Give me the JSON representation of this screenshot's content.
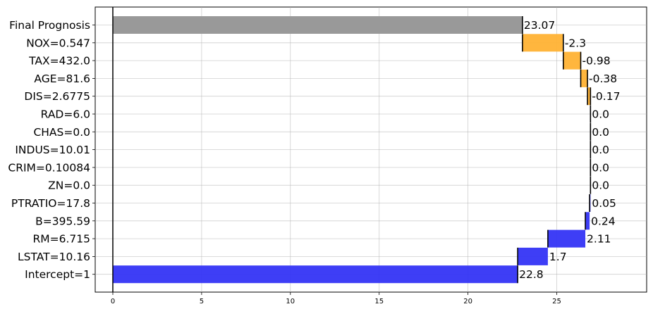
{
  "chart_data": {
    "type": "bar",
    "orientation": "horizontal",
    "style": "waterfall",
    "title": "",
    "xlabel": "",
    "ylabel": "",
    "xlim": [
      0,
      30
    ],
    "xticks": [
      0,
      5,
      10,
      15,
      20,
      25
    ],
    "grid": true,
    "colors": {
      "final": "#999999",
      "negative": "#ffb234",
      "positive": "#3434f5",
      "connector": "#000000"
    },
    "rows": [
      {
        "label": "Final Prognosis",
        "start": 0,
        "end": 23.07,
        "value_label": "23.07",
        "kind": "final"
      },
      {
        "label": "NOX=0.547",
        "start": 23.07,
        "end": 25.37,
        "value_label": "-2.3",
        "kind": "negative"
      },
      {
        "label": "TAX=432.0",
        "start": 25.37,
        "end": 26.35,
        "value_label": "-0.98",
        "kind": "negative"
      },
      {
        "label": "AGE=81.6",
        "start": 26.35,
        "end": 26.73,
        "value_label": "-0.38",
        "kind": "negative"
      },
      {
        "label": "DIS=2.6775",
        "start": 26.73,
        "end": 26.9,
        "value_label": "-0.17",
        "kind": "negative"
      },
      {
        "label": "RAD=6.0",
        "start": 26.9,
        "end": 26.9,
        "value_label": "0.0",
        "kind": "zero"
      },
      {
        "label": "CHAS=0.0",
        "start": 26.9,
        "end": 26.9,
        "value_label": "0.0",
        "kind": "zero"
      },
      {
        "label": "INDUS=10.01",
        "start": 26.9,
        "end": 26.9,
        "value_label": "0.0",
        "kind": "zero"
      },
      {
        "label": "CRIM=0.10084",
        "start": 26.9,
        "end": 26.9,
        "value_label": "0.0",
        "kind": "zero"
      },
      {
        "label": "ZN=0.0",
        "start": 26.9,
        "end": 26.9,
        "value_label": "0.0",
        "kind": "zero"
      },
      {
        "label": "PTRATIO=17.8",
        "start": 26.85,
        "end": 26.9,
        "value_label": "0.05",
        "kind": "positive"
      },
      {
        "label": "B=395.59",
        "start": 26.61,
        "end": 26.85,
        "value_label": "0.24",
        "kind": "positive"
      },
      {
        "label": "RM=6.715",
        "start": 24.5,
        "end": 26.61,
        "value_label": "2.11",
        "kind": "positive"
      },
      {
        "label": "LSTAT=10.16",
        "start": 22.8,
        "end": 24.5,
        "value_label": "1.7",
        "kind": "positive"
      },
      {
        "label": "Intercept=1",
        "start": 0,
        "end": 22.8,
        "value_label": "22.8",
        "kind": "positive"
      }
    ]
  }
}
